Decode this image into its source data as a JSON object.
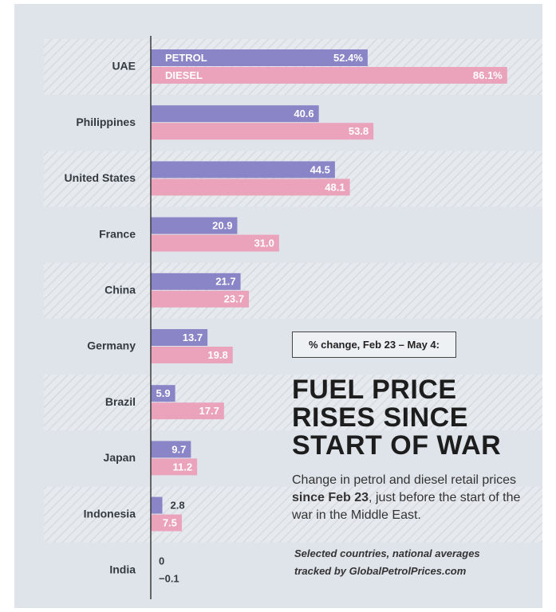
{
  "chart_data": {
    "type": "bar",
    "orientation": "horizontal",
    "title_lines": [
      "FUEL PRICE",
      "RISES SINCE",
      "START OF WAR"
    ],
    "box_label": "% change, Feb 23 – May 4:",
    "subtitle_parts": [
      "Change in petrol and diesel retail prices ",
      "since Feb 23",
      ", just before the start of the war in the Middle East."
    ],
    "note_lines": [
      "Selected countries, national averages",
      "tracked by GlobalPetrolPrices.com"
    ],
    "categories": [
      "UAE",
      "Philippines",
      "United States",
      "France",
      "China",
      "Germany",
      "Brazil",
      "Japan",
      "Indonesia",
      "India"
    ],
    "series": [
      {
        "name": "PETROL",
        "color": "#8a85c6",
        "values": [
          52.4,
          40.6,
          44.5,
          20.9,
          21.7,
          13.7,
          5.9,
          9.7,
          2.8,
          0
        ],
        "value_labels": [
          "52.4%",
          "40.6",
          "44.5",
          "20.9",
          "21.7",
          "13.7",
          "5.9",
          "9.7",
          "2.8",
          "0"
        ]
      },
      {
        "name": "DIESEL",
        "color": "#eaa3bb",
        "values": [
          86.1,
          53.8,
          48.1,
          31.0,
          23.7,
          19.8,
          17.7,
          11.2,
          7.5,
          -0.1
        ],
        "value_labels": [
          "86.1%",
          "53.8",
          "48.1",
          "31.0",
          "23.7",
          "19.8",
          "17.7",
          "11.2",
          "7.5",
          "−0.1"
        ]
      }
    ],
    "xlim": [
      0,
      90
    ]
  }
}
